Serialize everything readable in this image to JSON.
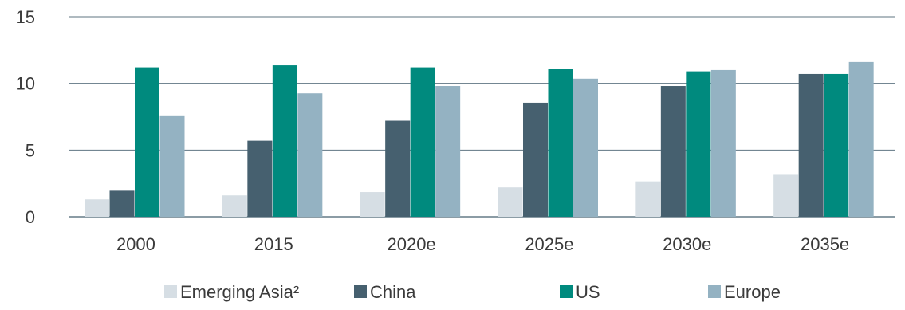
{
  "chart_data": {
    "type": "bar",
    "categories": [
      "2000",
      "2015",
      "2020e",
      "2025e",
      "2030e",
      "2035e"
    ],
    "series": [
      {
        "name": "Emerging Asia²",
        "color": "#d6dee4",
        "values": [
          1.3,
          1.6,
          1.85,
          2.2,
          2.65,
          3.2
        ]
      },
      {
        "name": "China",
        "color": "#46606f",
        "values": [
          1.95,
          5.7,
          7.2,
          8.55,
          9.8,
          10.7
        ]
      },
      {
        "name": "US",
        "color": "#008a7e",
        "values": [
          11.2,
          11.35,
          11.2,
          11.1,
          10.9,
          10.7
        ]
      },
      {
        "name": "Europe",
        "color": "#94b2c2",
        "values": [
          7.6,
          9.25,
          9.8,
          10.35,
          11.0,
          11.6
        ]
      }
    ],
    "y_ticks": [
      0,
      5,
      10,
      15
    ],
    "ylim": [
      0,
      15
    ],
    "grid": true,
    "legend": "bottom"
  }
}
